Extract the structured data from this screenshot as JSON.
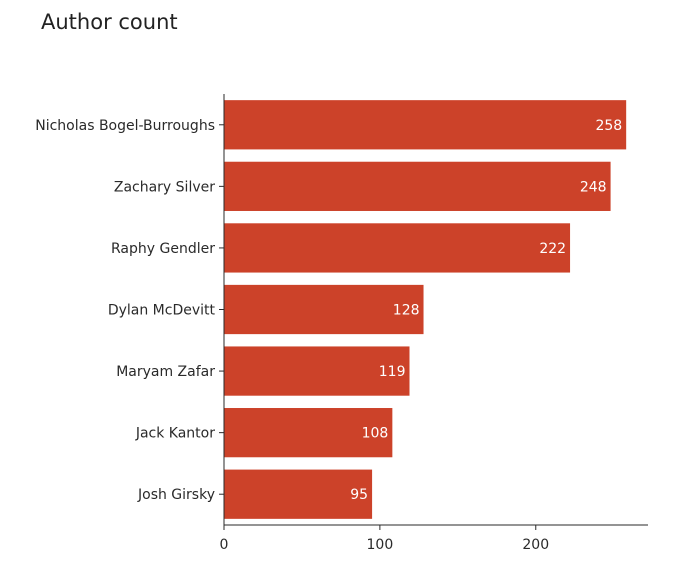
{
  "chart_data": {
    "type": "bar",
    "orientation": "horizontal",
    "title": "Author count",
    "xlabel": "",
    "ylabel": "",
    "categories": [
      "Nicholas Bogel-Burroughs",
      "Zachary Silver",
      "Raphy Gendler",
      "Dylan McDevitt",
      "Maryam Zafar",
      "Jack Kantor",
      "Josh Girsky"
    ],
    "values": [
      258,
      248,
      222,
      128,
      119,
      108,
      95
    ],
    "xlim": [
      0,
      272
    ],
    "xticks": [
      0,
      100,
      200
    ],
    "bar_color": "#cc4229",
    "data_labels": true,
    "grid": false
  }
}
